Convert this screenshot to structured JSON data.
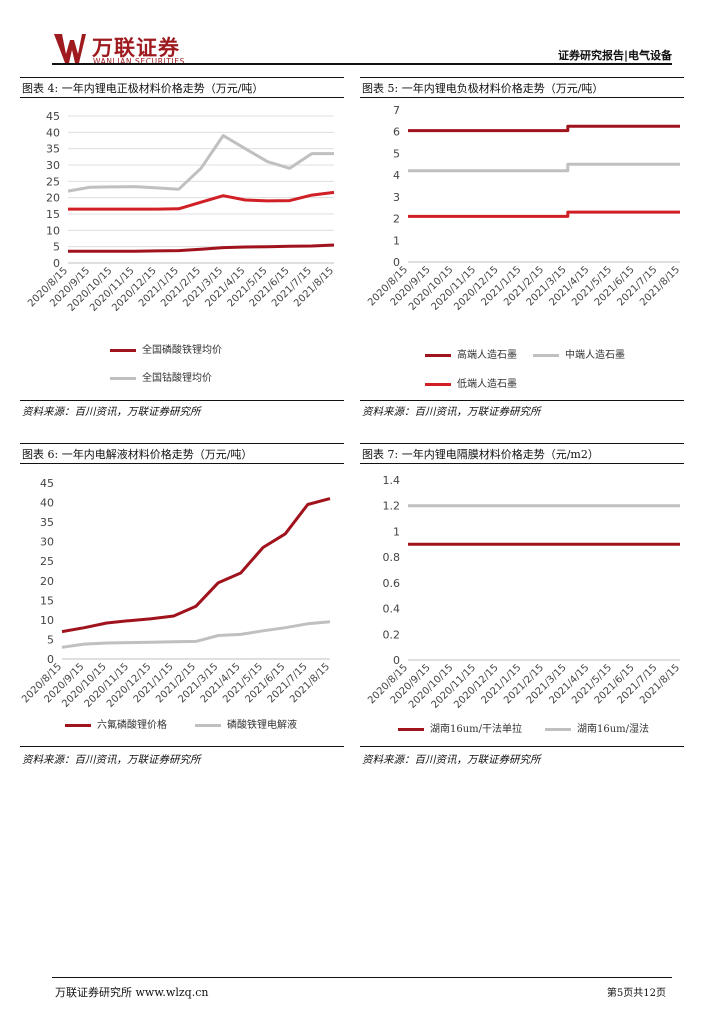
{
  "header": {
    "logo_name": "万联证券",
    "logo_sub": "WANLIAN SECURITIES",
    "report_type": "证券研究报告|电气设备"
  },
  "footer": {
    "left": "万联证券研究所 www.wlzq.cn",
    "right": "第5页共12页"
  },
  "colors": {
    "dark_red": "#a0131d",
    "red": "#d11f26",
    "gray": "#c0c0c0",
    "brand": "#9e1a1f"
  },
  "figures": [
    {
      "title": "图表 4:  一年内锂电正极材料价格走势（万元/吨）",
      "source": "资料来源：百川资讯，万联证券研究所",
      "legend": [
        "全国磷酸铁锂均价",
        "全国钴酸锂均价"
      ]
    },
    {
      "title": "图表 5:  一年内锂电负极材料价格走势（万元/吨）",
      "source": "资料来源：百川资讯，万联证券研究所",
      "legend": [
        "高端人造石墨",
        "中端人造石墨",
        "低端人造石墨"
      ]
    },
    {
      "title": "图表 6:  一年内电解液材料价格走势（万元/吨）",
      "source": "资料来源：百川资讯，万联证券研究所",
      "legend": [
        "六氟磷酸锂价格",
        "磷酸铁锂电解液"
      ]
    },
    {
      "title": "图表 7:  一年内锂电隔膜材料价格走势（元/m2）",
      "source": "资料来源：百川资讯，万联证券研究所",
      "legend": [
        "湖南16um/干法单拉",
        "湖南16um/湿法"
      ]
    }
  ],
  "chart_data": [
    {
      "type": "line",
      "title": "一年内锂电正极材料价格走势（万元/吨）",
      "unit": "万元/吨",
      "categories": [
        "2020/8/15",
        "2020/9/15",
        "2020/10/15",
        "2020/11/15",
        "2020/12/15",
        "2021/1/15",
        "2021/2/15",
        "2021/3/15",
        "2021/4/15",
        "2021/5/15",
        "2021/6/15",
        "2021/7/15",
        "2021/8/15"
      ],
      "ylim": [
        0,
        45
      ],
      "yticks": [
        0,
        5,
        10,
        15,
        20,
        25,
        30,
        35,
        40,
        45
      ],
      "series": [
        {
          "name": "全国磷酸铁锂均价",
          "color": "#a0131d",
          "values": [
            3.6,
            3.6,
            3.6,
            3.6,
            3.7,
            3.8,
            4.2,
            4.7,
            4.9,
            5.0,
            5.1,
            5.2,
            5.5
          ]
        },
        {
          "name": "全国钴酸锂均价",
          "color": "#c0c0c0",
          "values": [
            22,
            23.2,
            23.3,
            23.4,
            23.0,
            22.6,
            29,
            39,
            35,
            31,
            29,
            33.5,
            33.5
          ]
        },
        {
          "name": "red-2",
          "color": "#d11f26",
          "hidden_label": true,
          "values": [
            16.5,
            16.5,
            16.5,
            16.5,
            16.5,
            16.6,
            18.6,
            20.6,
            19.3,
            19.0,
            19.1,
            20.8,
            21.6
          ]
        }
      ]
    },
    {
      "type": "line",
      "title": "一年内锂电负极材料价格走势（万元/吨）",
      "unit": "万元/吨",
      "categories": [
        "2020/8/15",
        "2020/9/15",
        "2020/10/15",
        "2020/11/15",
        "2020/12/15",
        "2021/1/15",
        "2021/2/15",
        "2021/3/15",
        "2021/4/15",
        "2021/5/15",
        "2021/6/15",
        "2021/7/15",
        "2021/8/15"
      ],
      "ylim": [
        0,
        7
      ],
      "yticks": [
        0,
        1,
        2,
        3,
        4,
        5,
        6,
        7
      ],
      "series": [
        {
          "name": "高端人造石墨",
          "color": "#a0131d",
          "values": [
            6.05,
            6.05,
            6.05,
            6.05,
            6.05,
            6.05,
            6.05,
            6.05,
            6.25,
            6.25,
            6.25,
            6.25,
            6.25
          ]
        },
        {
          "name": "中端人造石墨",
          "color": "#c0c0c0",
          "values": [
            4.2,
            4.2,
            4.2,
            4.2,
            4.2,
            4.2,
            4.2,
            4.2,
            4.5,
            4.5,
            4.5,
            4.5,
            4.5
          ]
        },
        {
          "name": "低端人造石墨",
          "color": "#d11f26",
          "values": [
            2.1,
            2.1,
            2.1,
            2.1,
            2.1,
            2.1,
            2.1,
            2.1,
            2.3,
            2.3,
            2.3,
            2.3,
            2.3
          ]
        }
      ],
      "step_at": 7.05
    },
    {
      "type": "line",
      "title": "一年内电解液材料价格走势（万元/吨）",
      "unit": "万元/吨",
      "categories": [
        "2020/8/15",
        "2020/9/15",
        "2020/10/15",
        "2020/11/15",
        "2020/12/15",
        "2021/1/15",
        "2021/2/15",
        "2021/3/15",
        "2021/4/15",
        "2021/5/15",
        "2021/6/15",
        "2021/7/15",
        "2021/8/15"
      ],
      "ylim": [
        0,
        45
      ],
      "yticks": [
        0,
        5,
        10,
        15,
        20,
        25,
        30,
        35,
        40,
        45
      ],
      "series": [
        {
          "name": "六氟磷酸锂价格",
          "color": "#a0131d",
          "values": [
            7.0,
            8.0,
            9.2,
            9.8,
            10.3,
            11.0,
            13.5,
            19.5,
            22.0,
            28.5,
            32.0,
            39.5,
            41.0
          ]
        },
        {
          "name": "磷酸铁锂电解液",
          "color": "#c0c0c0",
          "values": [
            3.0,
            3.8,
            4.1,
            4.2,
            4.3,
            4.4,
            4.5,
            6.0,
            6.3,
            7.2,
            8.0,
            9.0,
            9.5
          ]
        }
      ]
    },
    {
      "type": "line",
      "title": "一年内锂电隔膜材料价格走势（元/m2）",
      "unit": "元/m2",
      "categories": [
        "2020/8/15",
        "2020/9/15",
        "2020/10/15",
        "2020/11/15",
        "2020/12/15",
        "2021/1/15",
        "2021/2/15",
        "2021/3/15",
        "2021/4/15",
        "2021/5/15",
        "2021/6/15",
        "2021/7/15",
        "2021/8/15"
      ],
      "ylim": [
        0,
        1.4
      ],
      "yticks": [
        0,
        0.2,
        0.4,
        0.6,
        0.8,
        1,
        1.2,
        1.4
      ],
      "series": [
        {
          "name": "湖南16um/干法单拉",
          "color": "#a0131d",
          "values": [
            0.9,
            0.9,
            0.9,
            0.9,
            0.9,
            0.9,
            0.9,
            0.9,
            0.9,
            0.9,
            0.9,
            0.9,
            0.9
          ]
        },
        {
          "name": "湖南16um/湿法",
          "color": "#c0c0c0",
          "values": [
            1.2,
            1.2,
            1.2,
            1.2,
            1.2,
            1.2,
            1.2,
            1.2,
            1.2,
            1.2,
            1.2,
            1.2,
            1.2
          ]
        }
      ]
    }
  ]
}
